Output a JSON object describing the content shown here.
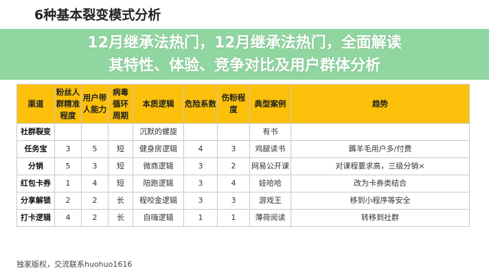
{
  "title": "6种基本裂变模式分析",
  "table": {
    "headers": [
      "渠道",
      "粉丝人群精准程度",
      "用户带人能力",
      "病毒循环周期",
      "本质逻辑",
      "危险系数",
      "伤粉程度",
      "典型案例",
      "趋势"
    ],
    "rows": [
      [
        "社群裂变",
        "",
        "",
        "",
        "沉默的螺旋",
        "",
        "",
        "有书",
        ""
      ],
      [
        "任务宝",
        "3",
        "5",
        "短",
        "健身房逻辑",
        "4",
        "3",
        "鸡腿读书",
        "薅羊毛用户多/付费"
      ],
      [
        "分销",
        "5",
        "3",
        "短",
        "微商逻辑",
        "3",
        "2",
        "网易公开课",
        "对课程要求高，三级分销×"
      ],
      [
        "红包卡券",
        "1",
        "4",
        "短",
        "陪跑逻辑",
        "3",
        "4",
        "娃哈哈",
        "改为卡券类结合"
      ],
      [
        "分享解锁",
        "2",
        "2",
        "长",
        "程咬金逻辑",
        "3",
        "3",
        "游戏王",
        "移到小程序等安全"
      ],
      [
        "打卡逻辑",
        "4",
        "2",
        "长",
        "自嗨逻辑",
        "1",
        "1",
        "薄荷阅读",
        "转移到社群"
      ]
    ]
  },
  "footer": "独家版权，交流联系huohuo1616",
  "overlay": {
    "line1": "12月继承法热门，12月继承法热门，全面解读",
    "line2": "其特性、体验、竞争对比及用户群体分析",
    "color": "#78cd8c"
  },
  "header_color": "#fcc00a"
}
